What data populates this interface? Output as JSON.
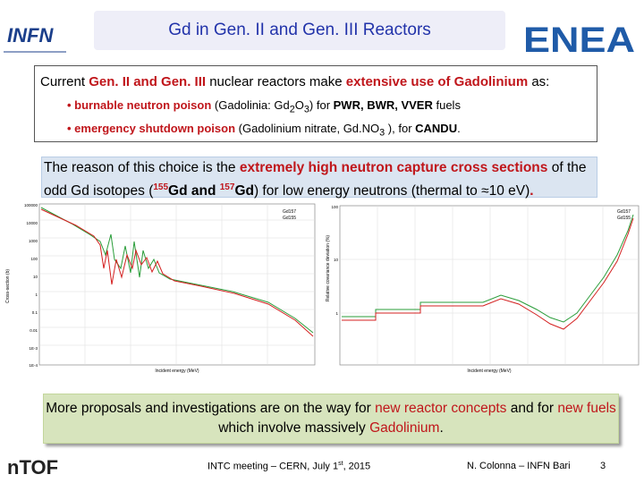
{
  "header": {
    "title": "Gd in Gen. II and Gen. III Reactors",
    "left_logo": "INFN",
    "right_logo": "ENEA"
  },
  "intro": {
    "parts": [
      "Current ",
      "Gen. II and Gen. III",
      " nuclear reactors make ",
      "extensive use of Gadolinium",
      " as:"
    ],
    "bullets": [
      [
        "• burnable neutron poison",
        " (Gadolinia: Gd",
        "2",
        "O",
        "3",
        ") for ",
        "PWR, BWR, VVER",
        " fuels"
      ],
      [
        "• emergency shutdown poison",
        " (Gadolinium nitrate, Gd.NO",
        "3",
        " ), for ",
        "CANDU",
        "."
      ]
    ]
  },
  "reason": {
    "parts": [
      "The reason of this choice is the ",
      "extremely high neutron capture cross sections",
      " of the odd Gd isotopes (",
      "155",
      "Gd and ",
      "157",
      "Gd",
      ") for low energy neutrons (thermal to ≈10 eV)",
      "."
    ]
  },
  "figures": [
    {
      "y_label": "Cross-section (b)",
      "x_label": "Incident energy (MeV)",
      "legend": [
        "Gd157",
        "Gd155"
      ],
      "y_ticks": [
        "100000",
        "10000",
        "1000",
        "100",
        "10",
        "1",
        "0.1",
        "0.01",
        "1E-3",
        "1E-4"
      ]
    },
    {
      "y_label": "Relative covariance deviation (%)",
      "x_label": "Incident energy (MeV)",
      "legend": [
        "Gd157",
        "Gd155"
      ],
      "y_ticks": [
        "100",
        "10",
        "1"
      ]
    }
  ],
  "outlook": {
    "parts": [
      "More proposals and investigations are on the way for ",
      "new reactor concepts",
      " and for ",
      "new fuels",
      " which involve massively ",
      "Gadolinium",
      "."
    ]
  },
  "footer": {
    "logo": "nTOF",
    "meeting": [
      "INTC meeting – CERN, July 1",
      "st",
      ", 2015"
    ],
    "author": "N. Colonna – INFN Bari",
    "page": "3"
  }
}
